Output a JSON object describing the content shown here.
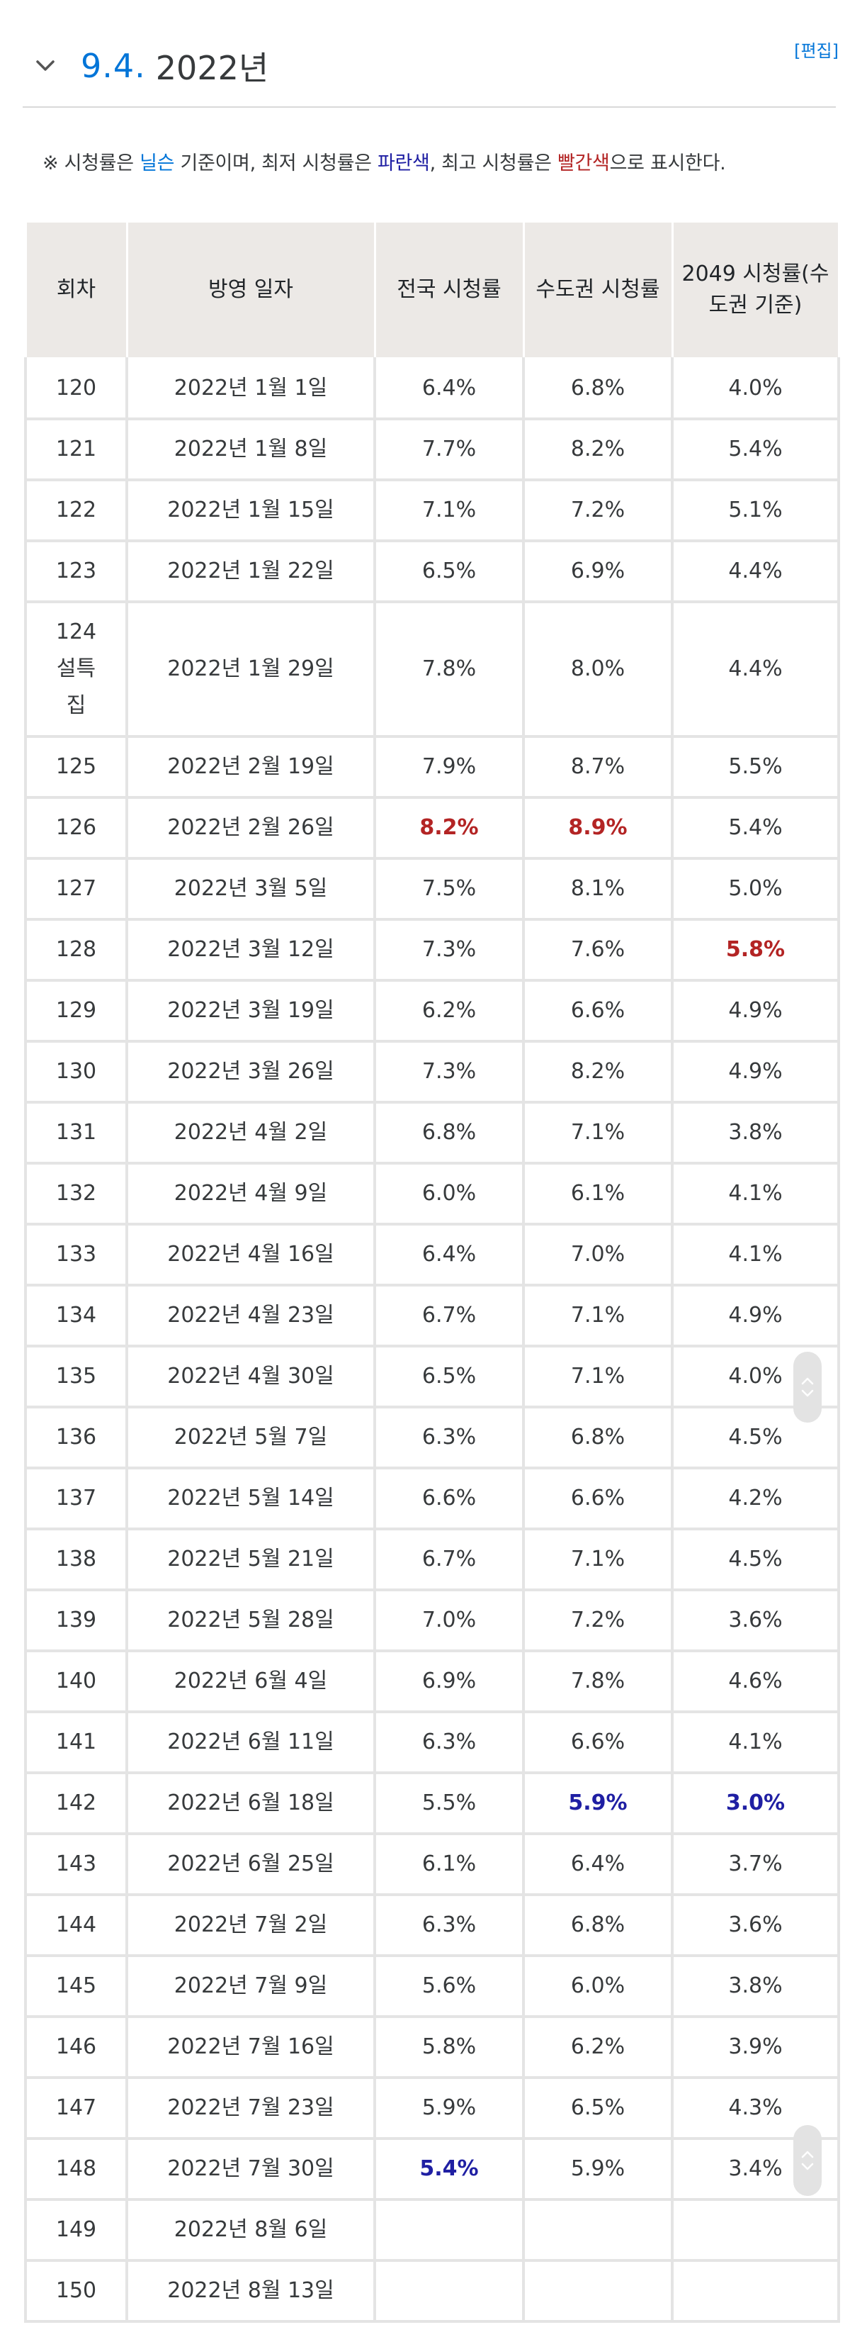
{
  "heading": {
    "number": "9.4.",
    "title": "2022년",
    "edit_label": "[편집]"
  },
  "note": {
    "t1": "※ 시청률은 ",
    "nielsen": "닐슨",
    "t2": " 기준이며, 최저 시청률은 ",
    "blue": "파란색",
    "t3": ", 최고 시청률은 ",
    "red": "빨간색",
    "t4": "으로 표시한다."
  },
  "table": {
    "headers": [
      "회차",
      "방영 일자",
      "전국 시청률",
      "수도권 시청률",
      "2049 시청률(수도권 기준)"
    ],
    "rows": [
      {
        "ep": "120",
        "date": "2022년 1월 1일",
        "nat": "6.4%",
        "met": "6.8%",
        "r2049": "4.0%"
      },
      {
        "ep": "121",
        "date": "2022년 1월 8일",
        "nat": "7.7%",
        "met": "8.2%",
        "r2049": "5.4%"
      },
      {
        "ep": "122",
        "date": "2022년 1월 15일",
        "nat": "7.1%",
        "met": "7.2%",
        "r2049": "5.1%"
      },
      {
        "ep": "123",
        "date": "2022년 1월 22일",
        "nat": "6.5%",
        "met": "6.9%",
        "r2049": "4.4%"
      },
      {
        "ep": "124 설특집",
        "date": "2022년 1월 29일",
        "nat": "7.8%",
        "met": "8.0%",
        "r2049": "4.4%"
      },
      {
        "ep": "125",
        "date": "2022년 2월 19일",
        "nat": "7.9%",
        "met": "8.7%",
        "r2049": "5.5%"
      },
      {
        "ep": "126",
        "date": "2022년 2월 26일",
        "nat": "8.2%",
        "met": "8.9%",
        "r2049": "5.4%"
      },
      {
        "ep": "127",
        "date": "2022년 3월 5일",
        "nat": "7.5%",
        "met": "8.1%",
        "r2049": "5.0%"
      },
      {
        "ep": "128",
        "date": "2022년 3월 12일",
        "nat": "7.3%",
        "met": "7.6%",
        "r2049": "5.8%"
      },
      {
        "ep": "129",
        "date": "2022년 3월 19일",
        "nat": "6.2%",
        "met": "6.6%",
        "r2049": "4.9%"
      },
      {
        "ep": "130",
        "date": "2022년 3월 26일",
        "nat": "7.3%",
        "met": "8.2%",
        "r2049": "4.9%"
      },
      {
        "ep": "131",
        "date": "2022년 4월 2일",
        "nat": "6.8%",
        "met": "7.1%",
        "r2049": "3.8%"
      },
      {
        "ep": "132",
        "date": "2022년 4월 9일",
        "nat": "6.0%",
        "met": "6.1%",
        "r2049": "4.1%"
      },
      {
        "ep": "133",
        "date": "2022년 4월 16일",
        "nat": "6.4%",
        "met": "7.0%",
        "r2049": "4.1%"
      },
      {
        "ep": "134",
        "date": "2022년 4월 23일",
        "nat": "6.7%",
        "met": "7.1%",
        "r2049": "4.9%"
      },
      {
        "ep": "135",
        "date": "2022년 4월 30일",
        "nat": "6.5%",
        "met": "7.1%",
        "r2049": "4.0%"
      },
      {
        "ep": "136",
        "date": "2022년 5월 7일",
        "nat": "6.3%",
        "met": "6.8%",
        "r2049": "4.5%"
      },
      {
        "ep": "137",
        "date": "2022년 5월 14일",
        "nat": "6.6%",
        "met": "6.6%",
        "r2049": "4.2%"
      },
      {
        "ep": "138",
        "date": "2022년 5월 21일",
        "nat": "6.7%",
        "met": "7.1%",
        "r2049": "4.5%"
      },
      {
        "ep": "139",
        "date": "2022년 5월 28일",
        "nat": "7.0%",
        "met": "7.2%",
        "r2049": "3.6%"
      },
      {
        "ep": "140",
        "date": "2022년 6월 4일",
        "nat": "6.9%",
        "met": "7.8%",
        "r2049": "4.6%"
      },
      {
        "ep": "141",
        "date": "2022년 6월 11일",
        "nat": "6.3%",
        "met": "6.6%",
        "r2049": "4.1%"
      },
      {
        "ep": "142",
        "date": "2022년 6월 18일",
        "nat": "5.5%",
        "met": "5.9%",
        "r2049": "3.0%"
      },
      {
        "ep": "143",
        "date": "2022년 6월 25일",
        "nat": "6.1%",
        "met": "6.4%",
        "r2049": "3.7%"
      },
      {
        "ep": "144",
        "date": "2022년 7월 2일",
        "nat": "6.3%",
        "met": "6.8%",
        "r2049": "3.6%"
      },
      {
        "ep": "145",
        "date": "2022년 7월 9일",
        "nat": "5.6%",
        "met": "6.0%",
        "r2049": "3.8%"
      },
      {
        "ep": "146",
        "date": "2022년 7월 16일",
        "nat": "5.8%",
        "met": "6.2%",
        "r2049": "3.9%"
      },
      {
        "ep": "147",
        "date": "2022년 7월 23일",
        "nat": "5.9%",
        "met": "6.5%",
        "r2049": "4.3%"
      },
      {
        "ep": "148",
        "date": "2022년 7월 30일",
        "nat": "5.4%",
        "met": "5.9%",
        "r2049": "3.4%"
      },
      {
        "ep": "149",
        "date": "2022년 8월 6일",
        "nat": "",
        "met": "",
        "r2049": ""
      },
      {
        "ep": "150",
        "date": "2022년 8월 13일",
        "nat": "",
        "met": "",
        "r2049": ""
      }
    ]
  },
  "colors": {
    "link_blue": "#0275d8",
    "lowest_blue": "#1f1fa3",
    "highest_red": "#b32424",
    "header_bg": "#ece9e6"
  }
}
